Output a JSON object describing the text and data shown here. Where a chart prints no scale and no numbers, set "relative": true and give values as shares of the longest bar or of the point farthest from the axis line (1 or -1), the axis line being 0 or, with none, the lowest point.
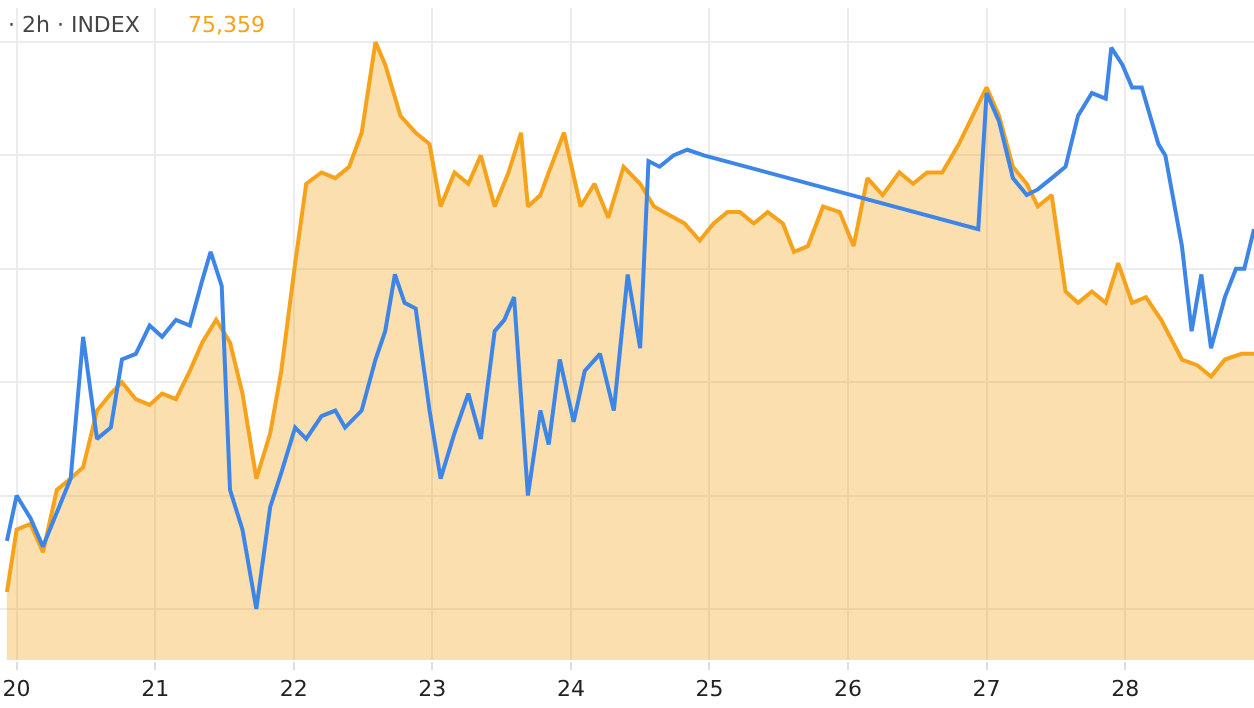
{
  "chart_data": {
    "type": "area",
    "relative": true,
    "grid": true,
    "annotations": [
      "· 2h · INDEX",
      "75,359"
    ],
    "xlim": [
      19.88,
      28.93
    ],
    "xticks": [
      20,
      21,
      22,
      23,
      24,
      25,
      26,
      27,
      28
    ],
    "series": [
      {
        "type": "line",
        "color": "#3d86e8",
        "x": [
          19.93,
          20.0,
          20.1,
          20.19,
          20.29,
          20.39,
          20.48,
          20.58,
          20.68,
          20.76,
          20.86,
          20.96,
          21.05,
          21.15,
          21.25,
          21.34,
          21.4,
          21.48,
          21.54,
          21.63,
          21.73,
          21.83,
          21.91,
          22.01,
          22.09,
          22.2,
          22.3,
          22.37,
          22.49,
          22.59,
          22.66,
          22.73,
          22.8,
          22.88,
          22.98,
          23.06,
          23.16,
          23.26,
          23.35,
          23.45,
          23.52,
          23.59,
          23.69,
          23.78,
          23.84,
          23.92,
          24.02,
          24.1,
          24.21,
          24.31,
          24.41,
          24.5,
          24.56,
          24.64,
          24.74,
          24.84,
          24.96,
          26.94,
          27.0,
          27.09,
          27.19,
          27.29,
          27.37,
          27.47,
          27.57,
          27.66,
          27.76,
          27.86,
          27.9,
          27.98,
          28.05,
          28.12,
          28.24,
          28.29,
          28.41,
          28.48,
          28.55,
          28.62,
          28.72,
          28.8,
          28.86,
          28.93
        ],
        "values": [
          0.12,
          0.2,
          0.16,
          0.11,
          0.17,
          0.23,
          0.48,
          0.3,
          0.32,
          0.44,
          0.45,
          0.5,
          0.48,
          0.51,
          0.5,
          0.58,
          0.63,
          0.57,
          0.21,
          0.14,
          0.0,
          0.18,
          0.24,
          0.32,
          0.3,
          0.34,
          0.35,
          0.32,
          0.35,
          0.44,
          0.49,
          0.59,
          0.54,
          0.53,
          0.35,
          0.23,
          0.31,
          0.38,
          0.3,
          0.49,
          0.51,
          0.55,
          0.2,
          0.35,
          0.29,
          0.44,
          0.33,
          0.42,
          0.45,
          0.35,
          0.59,
          0.46,
          0.79,
          0.78,
          0.8,
          0.81,
          0.8,
          0.67,
          0.91,
          0.86,
          0.76,
          0.73,
          0.74,
          0.76,
          0.78,
          0.87,
          0.91,
          0.9,
          0.99,
          0.96,
          0.92,
          0.92,
          0.82,
          0.8,
          0.64,
          0.49,
          0.59,
          0.46,
          0.55,
          0.6,
          0.6,
          0.67
        ]
      },
      {
        "color": "#f7a21b",
        "x": [
          19.93,
          20.0,
          20.1,
          20.19,
          20.29,
          20.39,
          20.48,
          20.58,
          20.68,
          20.76,
          20.86,
          20.96,
          21.05,
          21.15,
          21.25,
          21.34,
          21.44,
          21.54,
          21.63,
          21.73,
          21.83,
          21.91,
          22.01,
          22.09,
          22.2,
          22.3,
          22.4,
          22.49,
          22.59,
          22.66,
          22.77,
          22.88,
          22.98,
          23.06,
          23.16,
          23.26,
          23.35,
          23.45,
          23.55,
          23.64,
          23.69,
          23.78,
          23.84,
          23.95,
          24.07,
          24.17,
          24.27,
          24.38,
          24.5,
          24.6,
          24.67,
          24.82,
          24.93,
          25.03,
          25.13,
          25.22,
          25.32,
          25.42,
          25.53,
          25.61,
          25.71,
          25.82,
          25.94,
          26.04,
          26.14,
          26.25,
          26.37,
          26.47,
          26.57,
          26.68,
          26.8,
          26.9,
          27.0,
          27.09,
          27.19,
          27.29,
          27.37,
          27.47,
          27.57,
          27.66,
          27.76,
          27.86,
          27.95,
          28.05,
          28.15,
          28.26,
          28.41,
          28.52,
          28.62,
          28.72,
          28.84,
          28.93
        ],
        "values": [
          0.03,
          0.14,
          0.15,
          0.1,
          0.21,
          0.23,
          0.25,
          0.35,
          0.38,
          0.4,
          0.37,
          0.36,
          0.38,
          0.37,
          0.42,
          0.47,
          0.51,
          0.47,
          0.38,
          0.23,
          0.31,
          0.42,
          0.61,
          0.75,
          0.77,
          0.76,
          0.78,
          0.84,
          1.0,
          0.96,
          0.87,
          0.84,
          0.82,
          0.71,
          0.77,
          0.75,
          0.8,
          0.71,
          0.77,
          0.84,
          0.71,
          0.73,
          0.77,
          0.84,
          0.71,
          0.75,
          0.69,
          0.78,
          0.75,
          0.71,
          0.7,
          0.68,
          0.65,
          0.68,
          0.7,
          0.7,
          0.68,
          0.7,
          0.68,
          0.63,
          0.64,
          0.71,
          0.7,
          0.64,
          0.76,
          0.73,
          0.77,
          0.75,
          0.77,
          0.77,
          0.82,
          0.87,
          0.92,
          0.87,
          0.78,
          0.75,
          0.71,
          0.73,
          0.56,
          0.54,
          0.56,
          0.54,
          0.61,
          0.54,
          0.55,
          0.51,
          0.44,
          0.43,
          0.41,
          0.44,
          0.45,
          0.45
        ]
      }
    ]
  }
}
